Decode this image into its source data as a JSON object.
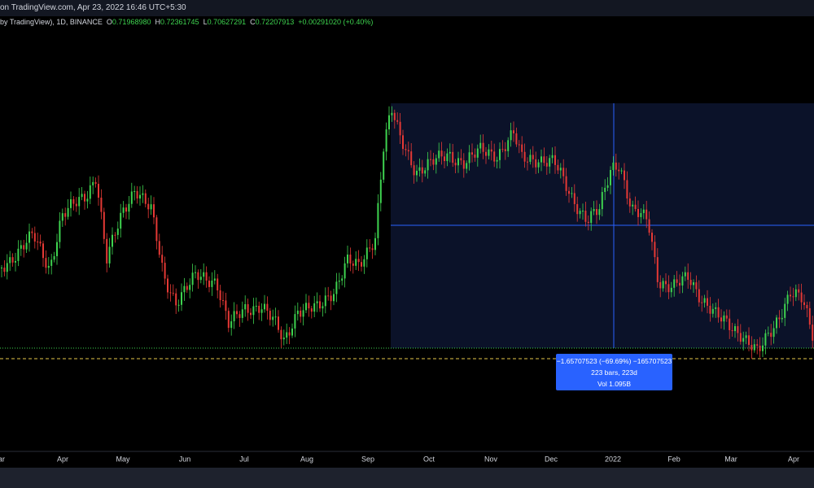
{
  "header": {
    "title": "on TradingView.com, Apr 23, 2022 16:46 UTC+5:30"
  },
  "legend": {
    "symbol": "by TradingView), 1D, BINANCE",
    "open_label": "O",
    "open": "0.71968980",
    "high_label": "H",
    "high": "0.72361745",
    "low_label": "L",
    "low": "0.70627291",
    "close_label": "C",
    "close": "0.72207913",
    "change": "+0.00291020 (+0.40%)"
  },
  "measure": {
    "change": "−1.65707523 (−69.69%) −165707523",
    "range": "223 bars, 223d",
    "volume": "Vol 1.095B"
  },
  "time_axis": [
    "ar",
    "Apr",
    "May",
    "Jun",
    "Jul",
    "Aug",
    "Sep",
    "Oct",
    "Nov",
    "Dec",
    "2022",
    "Feb",
    "Mar",
    "Apr"
  ]
}
